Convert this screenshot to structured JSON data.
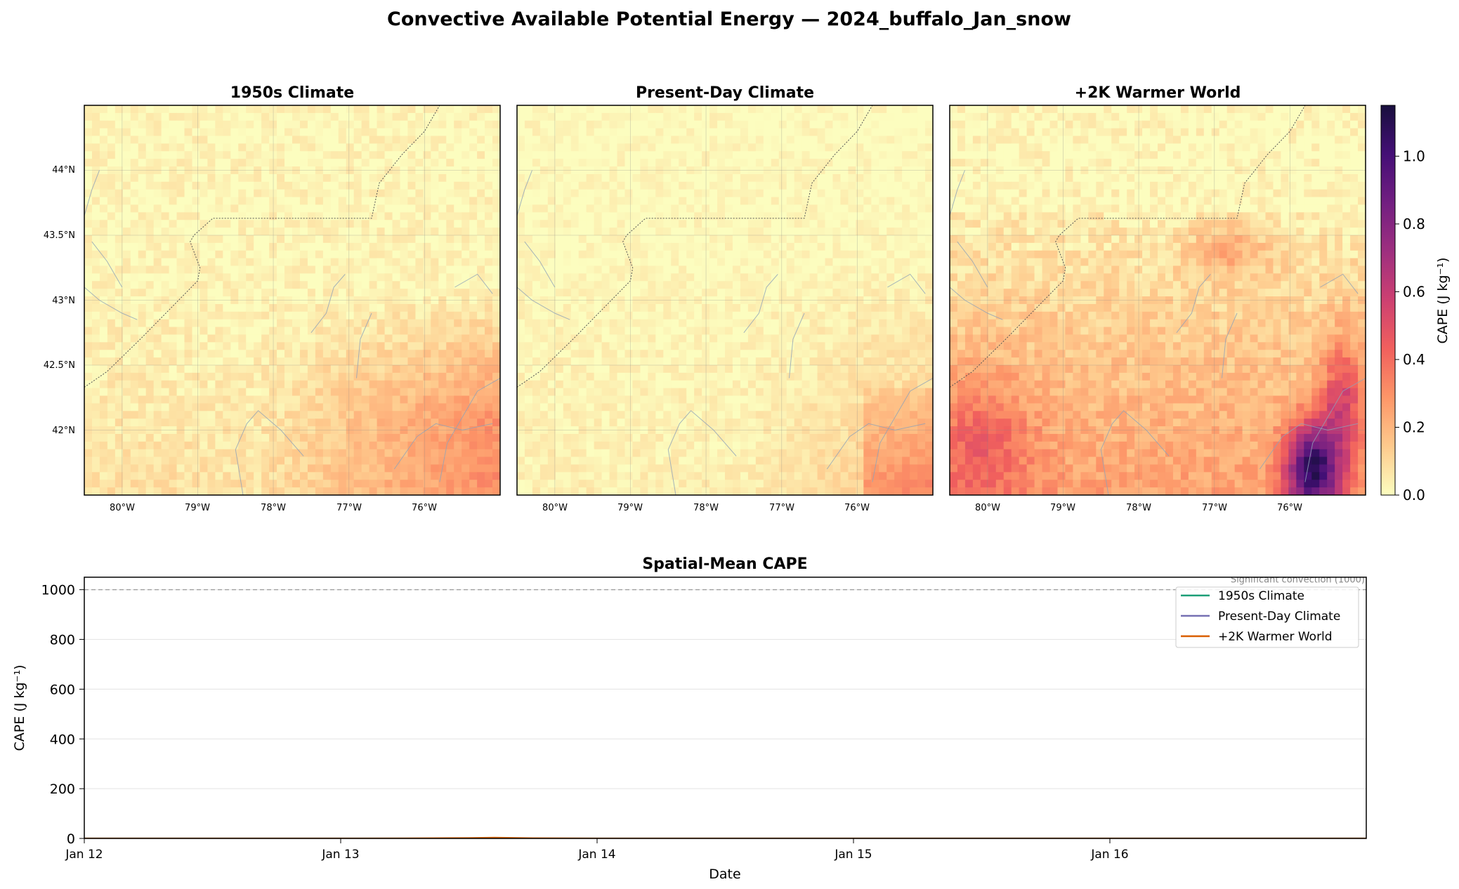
{
  "figure": {
    "title": "Convective Available Potential Energy — 2024_buffalo_Jan_snow"
  },
  "chart_data": [
    {
      "type": "heatmap",
      "title": "1950s Climate",
      "field": "cape_1950s",
      "xticks": [
        "80°W",
        "79°W",
        "78°W",
        "77°W",
        "76°W"
      ],
      "yticks": [
        "44°N",
        "43.5°N",
        "43°N",
        "42.5°N",
        "42°N"
      ],
      "xlim": [
        -80.5,
        -75.0
      ],
      "ylim": [
        41.5,
        44.5
      ],
      "grid": true
    },
    {
      "type": "heatmap",
      "title": "Present-Day Climate",
      "field": "cape_present",
      "xticks": [
        "80°W",
        "79°W",
        "78°W",
        "77°W",
        "76°W"
      ],
      "yticks": [
        "44°N",
        "43.5°N",
        "43°N",
        "42.5°N",
        "42°N"
      ],
      "xlim": [
        -80.5,
        -75.0
      ],
      "ylim": [
        41.5,
        44.5
      ],
      "grid": true
    },
    {
      "type": "heatmap",
      "title": "+2K Warmer World",
      "field": "cape_plus2k",
      "xticks": [
        "80°W",
        "79°W",
        "78°W",
        "77°W",
        "76°W"
      ],
      "yticks": [
        "44°N",
        "43.5°N",
        "43°N",
        "42.5°N",
        "42°N"
      ],
      "xlim": [
        -80.5,
        -75.0
      ],
      "ylim": [
        41.5,
        44.5
      ],
      "grid": true,
      "colorbar": {
        "label": "CAPE (J kg⁻¹)",
        "range": [
          0,
          1.15
        ],
        "ticks": [
          "0.0",
          "0.2",
          "0.4",
          "0.6",
          "0.8",
          "1.0"
        ],
        "colormap": [
          "#fcfdbf",
          "#feca8d",
          "#fd9668",
          "#f1605d",
          "#cd4071",
          "#9e2f7f",
          "#721f81",
          "#440f76",
          "#180f3d"
        ]
      }
    },
    {
      "type": "line",
      "title": "Spatial-Mean CAPE",
      "xlabel": "Date",
      "ylabel": "CAPE (J kg⁻¹)",
      "xlim": [
        "Jan 12",
        "Jan 17"
      ],
      "ylim": [
        0,
        1050
      ],
      "xticks": [
        "Jan 12",
        "Jan 13",
        "Jan 14",
        "Jan 15",
        "Jan 16"
      ],
      "yticks": [
        0,
        200,
        400,
        600,
        800,
        1000
      ],
      "grid": true,
      "legend_position": "top-right",
      "reference_line": {
        "value": 1000,
        "label": "Significant convection (1000)"
      },
      "x": [
        "Jan 12",
        "Jan 12.5",
        "Jan 13",
        "Jan 13.25",
        "Jan 13.5",
        "Jan 13.6",
        "Jan 13.75",
        "Jan 14",
        "Jan 14.5",
        "Jan 15",
        "Jan 15.5",
        "Jan 16",
        "Jan 16.5",
        "Jan 17"
      ],
      "series": [
        {
          "name": "1950s Climate",
          "color": "#1b9e77",
          "values": [
            0,
            0,
            0,
            0,
            0,
            0,
            0,
            0,
            0,
            0,
            0,
            0,
            0,
            0
          ]
        },
        {
          "name": "Present-Day Climate",
          "color": "#7570b3",
          "values": [
            0,
            0,
            0,
            0,
            0,
            0,
            0,
            0,
            0,
            0,
            0,
            0,
            0,
            0
          ]
        },
        {
          "name": "+2K Warmer World",
          "color": "#d95f02",
          "values": [
            0,
            0,
            0,
            0.5,
            2,
            3,
            1,
            0,
            0,
            0,
            0,
            0,
            0,
            0
          ]
        }
      ]
    }
  ]
}
